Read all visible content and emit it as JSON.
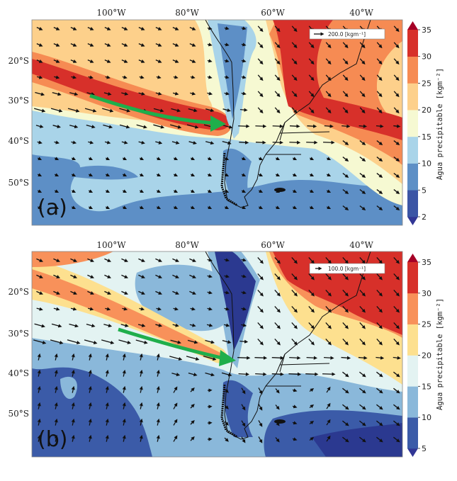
{
  "figure": {
    "colorbar_label": "Agua precipitable [kgm⁻²]",
    "lon_labels": [
      "100°W",
      "80°W",
      "60°W",
      "40°W"
    ],
    "lat_labels": [
      "20°S",
      "30°S",
      "40°S",
      "50°S"
    ],
    "panels": [
      {
        "label": "(a)",
        "legend_text": "200.0 [kgm⁻¹]",
        "reference_vector": 200.0,
        "colorbar_ticks": [
          "35",
          "30",
          "25",
          "20",
          "15",
          "10",
          "5",
          "2"
        ],
        "colorbar_levels": [
          2,
          5,
          10,
          15,
          20,
          25,
          30,
          35
        ],
        "colorbar_colors": [
          "#3b55a5",
          "#5d8fc6",
          "#a9d4e9",
          "#f6f9d2",
          "#fdd08b",
          "#f68b53",
          "#d7302a"
        ],
        "extend_colors": {
          "over": "#a50026",
          "under": "#313695"
        }
      },
      {
        "label": "(b)",
        "legend_text": "100.0 [kgm⁻¹]",
        "reference_vector": 100.0,
        "colorbar_ticks": [
          "35",
          "30",
          "25",
          "20",
          "15",
          "10",
          "5"
        ],
        "colorbar_levels": [
          5,
          10,
          15,
          20,
          25,
          30,
          35
        ],
        "colorbar_colors": [
          "#3b5ba8",
          "#8ab8da",
          "#e3f3f2",
          "#fde08f",
          "#f8915a",
          "#d7302a"
        ],
        "extend_colors": {
          "over": "#a50026",
          "under": "#313695"
        }
      }
    ],
    "highlight_arrow_color": "#1fae4b"
  }
}
